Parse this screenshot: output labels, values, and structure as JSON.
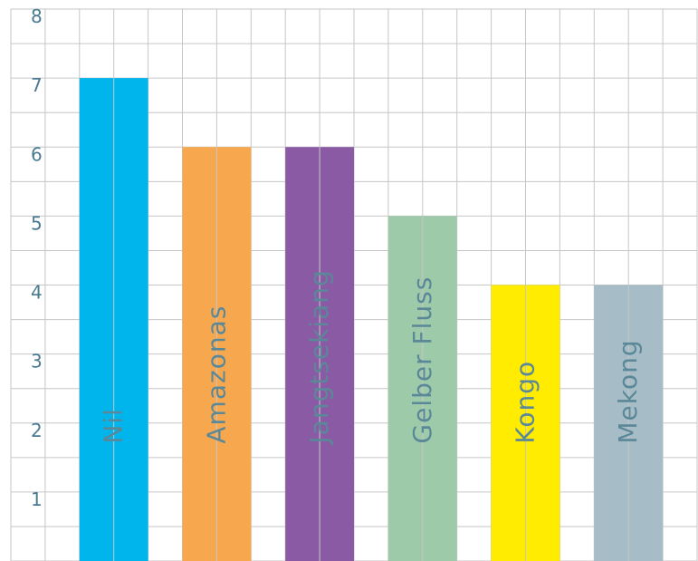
{
  "chart_data": {
    "type": "bar",
    "title": "",
    "xlabel": "",
    "ylabel": "",
    "categories": [
      "Nil",
      "Amazonas",
      "Jangtsekiang",
      "Gelber Fluss",
      "Kongo",
      "Mekong"
    ],
    "values": [
      7,
      6,
      6,
      5,
      4,
      4
    ],
    "colors": [
      "#00b5ec",
      "#f7a84f",
      "#8a5aa5",
      "#9dcaa9",
      "#ffec00",
      "#a6bcc6"
    ],
    "ylim": [
      0,
      8
    ],
    "yticks": [
      "1",
      "2",
      "3",
      "4",
      "5",
      "6",
      "7",
      "8"
    ],
    "grid": true,
    "legend": "none",
    "label_placement": "inside-bar-vertical"
  }
}
